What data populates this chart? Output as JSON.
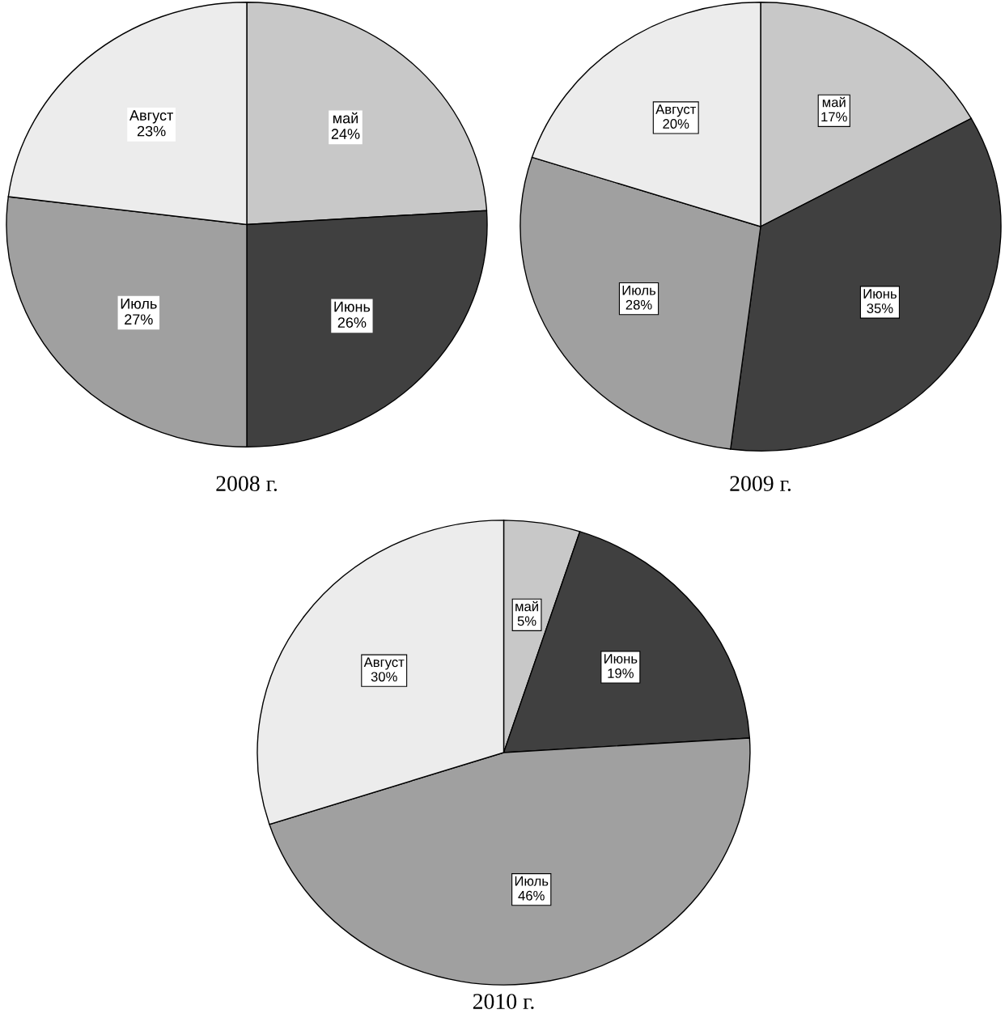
{
  "chart_data": [
    {
      "type": "pie",
      "title": "2008 г.",
      "categories": [
        "май",
        "Июнь",
        "Июль",
        "Август"
      ],
      "values": [
        24,
        26,
        27,
        23
      ],
      "value_labels": [
        "24%",
        "26%",
        "27%",
        "23%"
      ],
      "colors": [
        "#c8c8c8",
        "#404040",
        "#a0a0a0",
        "#ececec"
      ]
    },
    {
      "type": "pie",
      "title": "2009 г.",
      "categories": [
        "май",
        "Июнь",
        "Июль",
        "Август"
      ],
      "values": [
        17,
        35,
        28,
        20
      ],
      "value_labels": [
        "17%",
        "35%",
        "28%",
        "20%"
      ],
      "colors": [
        "#c8c8c8",
        "#404040",
        "#a0a0a0",
        "#ececec"
      ]
    },
    {
      "type": "pie",
      "title": "2010 г.",
      "categories": [
        "май",
        "Июнь",
        "Июль",
        "Август"
      ],
      "values": [
        5,
        19,
        46,
        30
      ],
      "value_labels": [
        "5%",
        "19%",
        "46%",
        "30%"
      ],
      "colors": [
        "#c8c8c8",
        "#404040",
        "#a0a0a0",
        "#ececec"
      ]
    }
  ]
}
